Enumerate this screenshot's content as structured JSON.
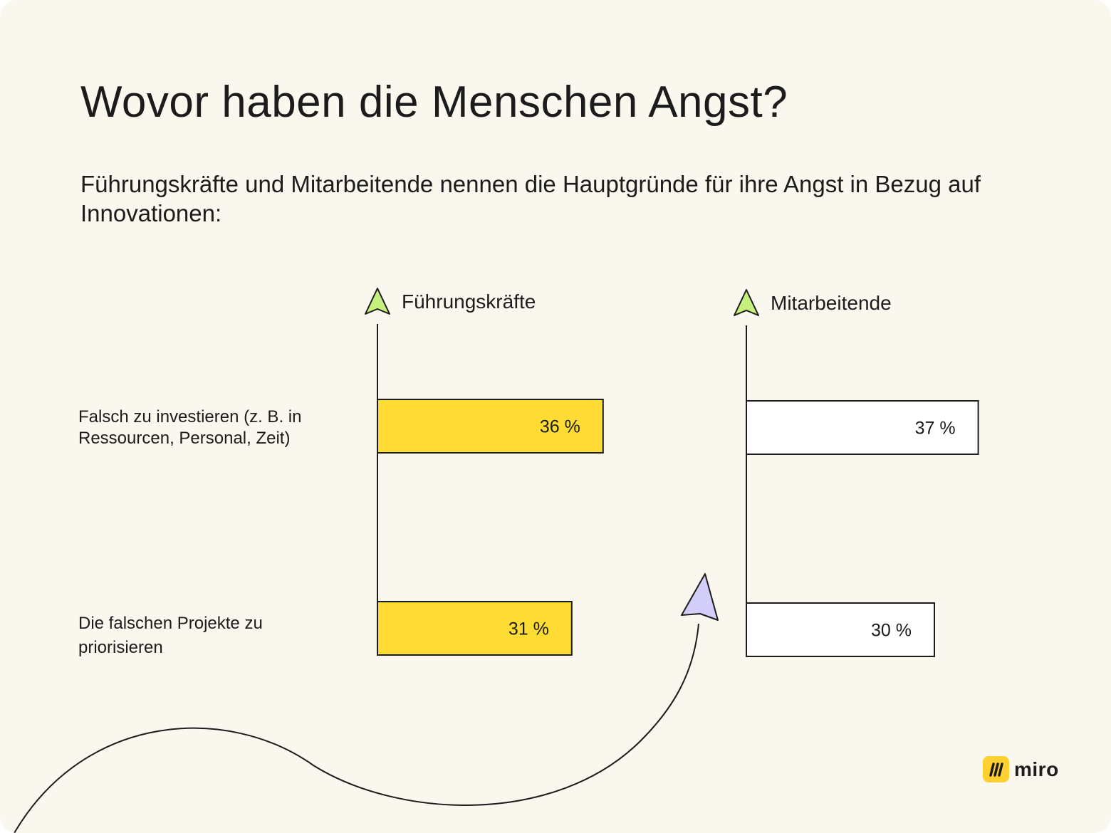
{
  "colors": {
    "background": "#faf7ef",
    "series_fill": [
      "#ffdc34",
      "#ffffff"
    ],
    "arrow_green": "#c6f07c",
    "arrow_purple": "#d2cdf9",
    "logo_yellow": "#ffd02f",
    "text": "#1c1c1c"
  },
  "logo": {
    "text": "miro",
    "icon": "miro-logo-icon"
  },
  "chart_data": {
    "type": "bar",
    "orientation": "horizontal",
    "title": "Wovor haben die Menschen Angst?",
    "subtitle": "Führungskräfte und Mitarbeitende nennen die Hauptgründe für ihre Angst in Bezug auf Innovationen:",
    "categories": [
      "Falsch zu investieren (z. B. in Ressourcen, Personal, Zeit)",
      "Die falschen Projekte zu priorisieren"
    ],
    "series": [
      {
        "name": "Führungskräfte",
        "values": [
          36,
          31
        ],
        "labels": [
          "36 %",
          "31 %"
        ]
      },
      {
        "name": "Mitarbeitende",
        "values": [
          37,
          30
        ],
        "labels": [
          "37 %",
          "30 %"
        ]
      }
    ],
    "unit": "%",
    "xlim": [
      0,
      100
    ],
    "grid": false,
    "legend": "none",
    "axis_arrow_icon": "arrow-pointer-icon"
  }
}
